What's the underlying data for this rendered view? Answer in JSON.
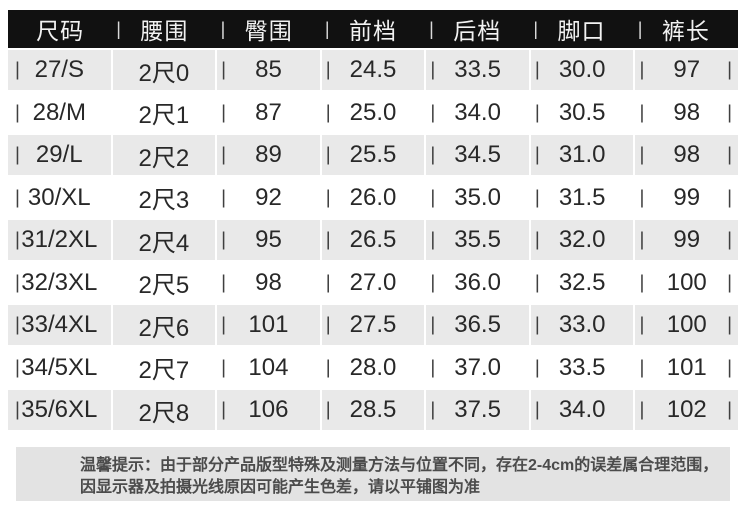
{
  "table": {
    "columns": [
      "尺码",
      "腰围",
      "臀围",
      "前档",
      "后档",
      "脚口",
      "裤长"
    ],
    "rows": [
      [
        "27/S",
        "2尺0",
        "85",
        "24.5",
        "33.5",
        "30.0",
        "97"
      ],
      [
        "28/M",
        "2尺1",
        "87",
        "25.0",
        "34.0",
        "30.5",
        "98"
      ],
      [
        "29/L",
        "2尺2",
        "89",
        "25.5",
        "34.5",
        "31.0",
        "98"
      ],
      [
        "30/XL",
        "2尺3",
        "92",
        "26.0",
        "35.0",
        "31.5",
        "99"
      ],
      [
        "31/2XL",
        "2尺4",
        "95",
        "26.5",
        "35.5",
        "32.0",
        "99"
      ],
      [
        "32/3XL",
        "2尺5",
        "98",
        "27.0",
        "36.0",
        "32.5",
        "100"
      ],
      [
        "33/4XL",
        "2尺6",
        "101",
        "27.5",
        "36.5",
        "33.0",
        "100"
      ],
      [
        "34/5XL",
        "2尺7",
        "104",
        "28.0",
        "37.0",
        "33.5",
        "101"
      ],
      [
        "35/6XL",
        "2尺8",
        "106",
        "28.5",
        "37.5",
        "34.0",
        "102"
      ]
    ],
    "separator_glyph": "|"
  },
  "note": {
    "lines": [
      "温馨提示：由于部分产品版型特殊及测量方法与位置不同，存在2-4cm的误差属合理范围，",
      "因显示器及拍摄光线原因可能产生色差，请以平铺图为准"
    ]
  },
  "colors": {
    "header_bg": "#111111",
    "header_text": "#f2f2f2",
    "header_pipe": "#d9d9d9",
    "row_bg": "#ffffff",
    "row_alt_bg": "#e9e9e9",
    "text": "#282828",
    "pipe": "#3f3f3f",
    "note_bg": "#e3e3e3",
    "note_text": "#4b4b4b"
  }
}
